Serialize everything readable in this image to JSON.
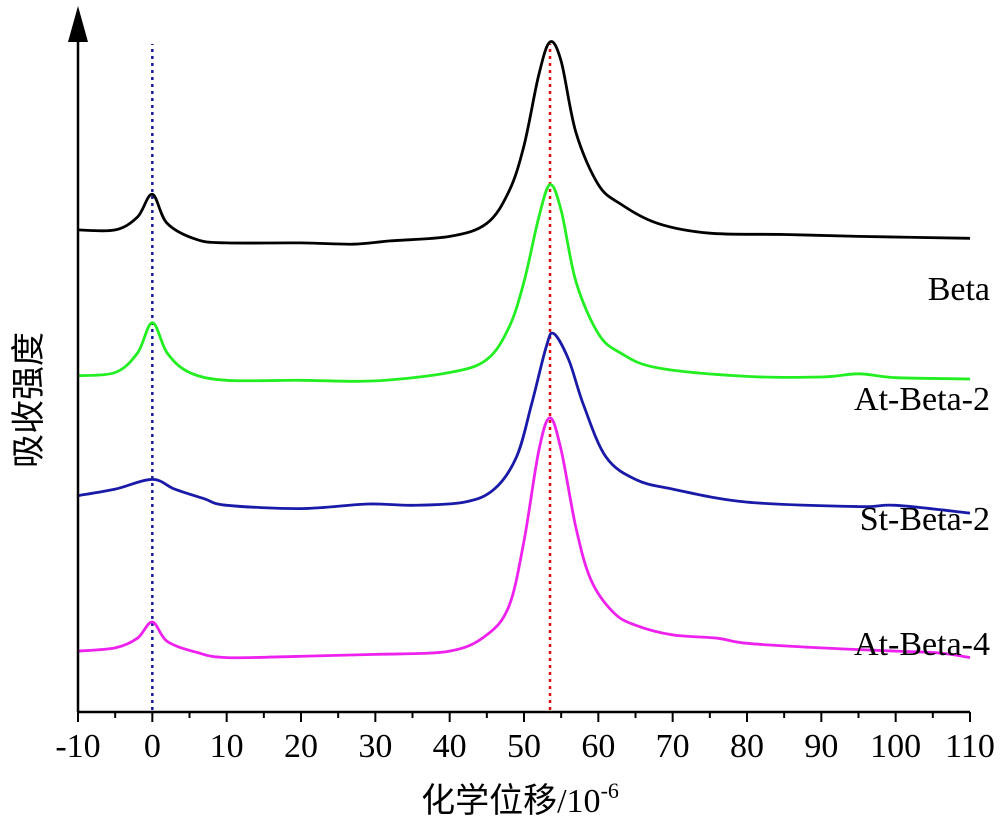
{
  "chart_data": {
    "type": "line",
    "xlabel": "化学位移/10",
    "xlabel_sup": "-6",
    "ylabel": "吸收强度",
    "xlim": [
      -10,
      110
    ],
    "xticks": [
      -10,
      0,
      10,
      20,
      30,
      40,
      50,
      60,
      70,
      80,
      90,
      100,
      110
    ],
    "y_ticks_shown": false,
    "grid": false,
    "legend": "inline labels at right end of each curve",
    "reference_lines": [
      {
        "x": 0,
        "color": "#1a1aa0",
        "style": "dotted"
      },
      {
        "x": 53.5,
        "color": "#e01010",
        "style": "dotted"
      }
    ],
    "series": [
      {
        "name": "Beta",
        "color": "#000000",
        "points": [
          [
            -10,
            0.71
          ],
          [
            -5,
            0.71
          ],
          [
            -2,
            0.73
          ],
          [
            0,
            0.765
          ],
          [
            2,
            0.72
          ],
          [
            6,
            0.695
          ],
          [
            10,
            0.69
          ],
          [
            20,
            0.69
          ],
          [
            27,
            0.688
          ],
          [
            32,
            0.693
          ],
          [
            40,
            0.7
          ],
          [
            45,
            0.72
          ],
          [
            48,
            0.77
          ],
          [
            50,
            0.84
          ],
          [
            52,
            0.95
          ],
          [
            53.5,
            1.0
          ],
          [
            55,
            0.97
          ],
          [
            57,
            0.86
          ],
          [
            60,
            0.78
          ],
          [
            63,
            0.75
          ],
          [
            68,
            0.72
          ],
          [
            75,
            0.705
          ],
          [
            85,
            0.703
          ],
          [
            95,
            0.7
          ],
          [
            110,
            0.697
          ]
        ]
      },
      {
        "name": "At-Beta-2",
        "color": "#22ee22",
        "points": [
          [
            -10,
            0.485
          ],
          [
            -5,
            0.49
          ],
          [
            -2,
            0.52
          ],
          [
            0,
            0.567
          ],
          [
            2,
            0.52
          ],
          [
            5,
            0.49
          ],
          [
            10,
            0.478
          ],
          [
            20,
            0.478
          ],
          [
            30,
            0.477
          ],
          [
            40,
            0.49
          ],
          [
            45,
            0.51
          ],
          [
            48,
            0.56
          ],
          [
            50,
            0.63
          ],
          [
            52,
            0.73
          ],
          [
            53.5,
            0.78
          ],
          [
            55,
            0.74
          ],
          [
            57,
            0.63
          ],
          [
            60,
            0.55
          ],
          [
            63,
            0.52
          ],
          [
            68,
            0.497
          ],
          [
            80,
            0.484
          ],
          [
            90,
            0.483
          ],
          [
            95,
            0.488
          ],
          [
            100,
            0.482
          ],
          [
            110,
            0.48
          ]
        ]
      },
      {
        "name": "St-Beta-2",
        "color": "#1a1aa8",
        "points": [
          [
            -10,
            0.3
          ],
          [
            -5,
            0.31
          ],
          [
            0,
            0.325
          ],
          [
            3,
            0.31
          ],
          [
            7,
            0.295
          ],
          [
            10,
            0.285
          ],
          [
            20,
            0.28
          ],
          [
            29,
            0.287
          ],
          [
            35,
            0.285
          ],
          [
            42,
            0.29
          ],
          [
            46,
            0.31
          ],
          [
            49,
            0.36
          ],
          [
            51,
            0.44
          ],
          [
            53,
            0.53
          ],
          [
            54,
            0.55
          ],
          [
            56,
            0.51
          ],
          [
            58,
            0.44
          ],
          [
            61,
            0.36
          ],
          [
            65,
            0.325
          ],
          [
            70,
            0.31
          ],
          [
            80,
            0.29
          ],
          [
            95,
            0.283
          ],
          [
            100,
            0.285
          ],
          [
            110,
            0.273
          ]
        ]
      },
      {
        "name": "At-Beta-4",
        "color": "#ee22ee",
        "points": [
          [
            -10,
            0.06
          ],
          [
            -5,
            0.065
          ],
          [
            -2,
            0.08
          ],
          [
            0,
            0.105
          ],
          [
            2,
            0.075
          ],
          [
            6,
            0.058
          ],
          [
            10,
            0.05
          ],
          [
            20,
            0.052
          ],
          [
            30,
            0.055
          ],
          [
            40,
            0.06
          ],
          [
            45,
            0.085
          ],
          [
            48,
            0.13
          ],
          [
            50,
            0.23
          ],
          [
            52,
            0.37
          ],
          [
            53.5,
            0.42
          ],
          [
            55,
            0.37
          ],
          [
            57,
            0.25
          ],
          [
            59,
            0.17
          ],
          [
            62,
            0.12
          ],
          [
            65,
            0.1
          ],
          [
            70,
            0.085
          ],
          [
            76,
            0.08
          ],
          [
            80,
            0.072
          ],
          [
            90,
            0.065
          ],
          [
            100,
            0.06
          ],
          [
            106,
            0.057
          ],
          [
            110,
            0.05
          ]
        ]
      }
    ]
  }
}
